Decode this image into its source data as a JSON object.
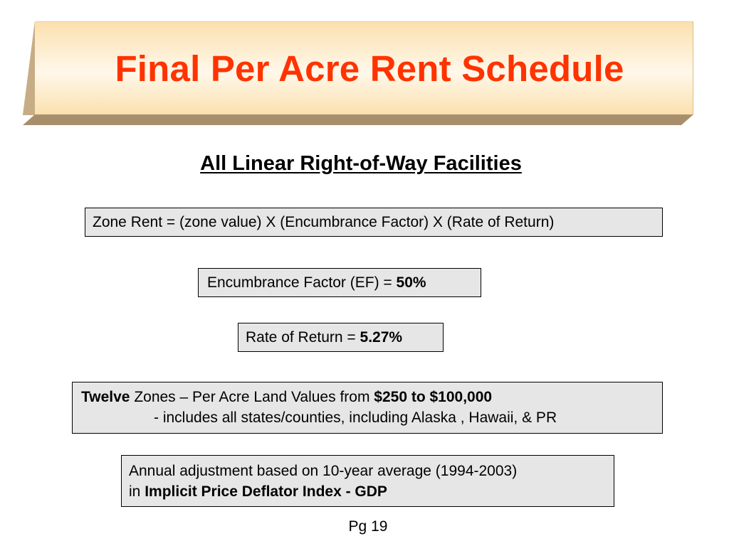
{
  "slide": {
    "title": "Final Per Acre Rent Schedule",
    "subtitle": "All Linear Right-of-Way Facilities",
    "title_color": "#ff3300",
    "banner_face_colors": [
      "#fbe2b2",
      "#fff7e6",
      "#fbe2b2"
    ],
    "banner_bevel_color": "#b8a07e"
  },
  "formula_box": {
    "text": "Zone Rent = (zone value) X (Encumbrance Factor) X (Rate of Return)"
  },
  "encumbrance_box": {
    "label": "Encumbrance Factor (EF) = ",
    "value": "50%"
  },
  "rate_box": {
    "label": "Rate of Return = ",
    "value": "5.27%"
  },
  "zones_box": {
    "count_word": "Twelve",
    "text": " Zones – Per Acre Land Values from ",
    "range": "$250 to $100,000",
    "line2": "- includes all states/counties, including Alaska , Hawaii, & PR"
  },
  "annual_box": {
    "line1": "Annual adjustment based on 10-year average (1994-2003)",
    "line2_prefix": "in ",
    "line2_bold": "Implicit Price Deflator Index - GDP"
  },
  "footer": {
    "page": "Pg 19"
  },
  "box_background": "#e6e6e6"
}
